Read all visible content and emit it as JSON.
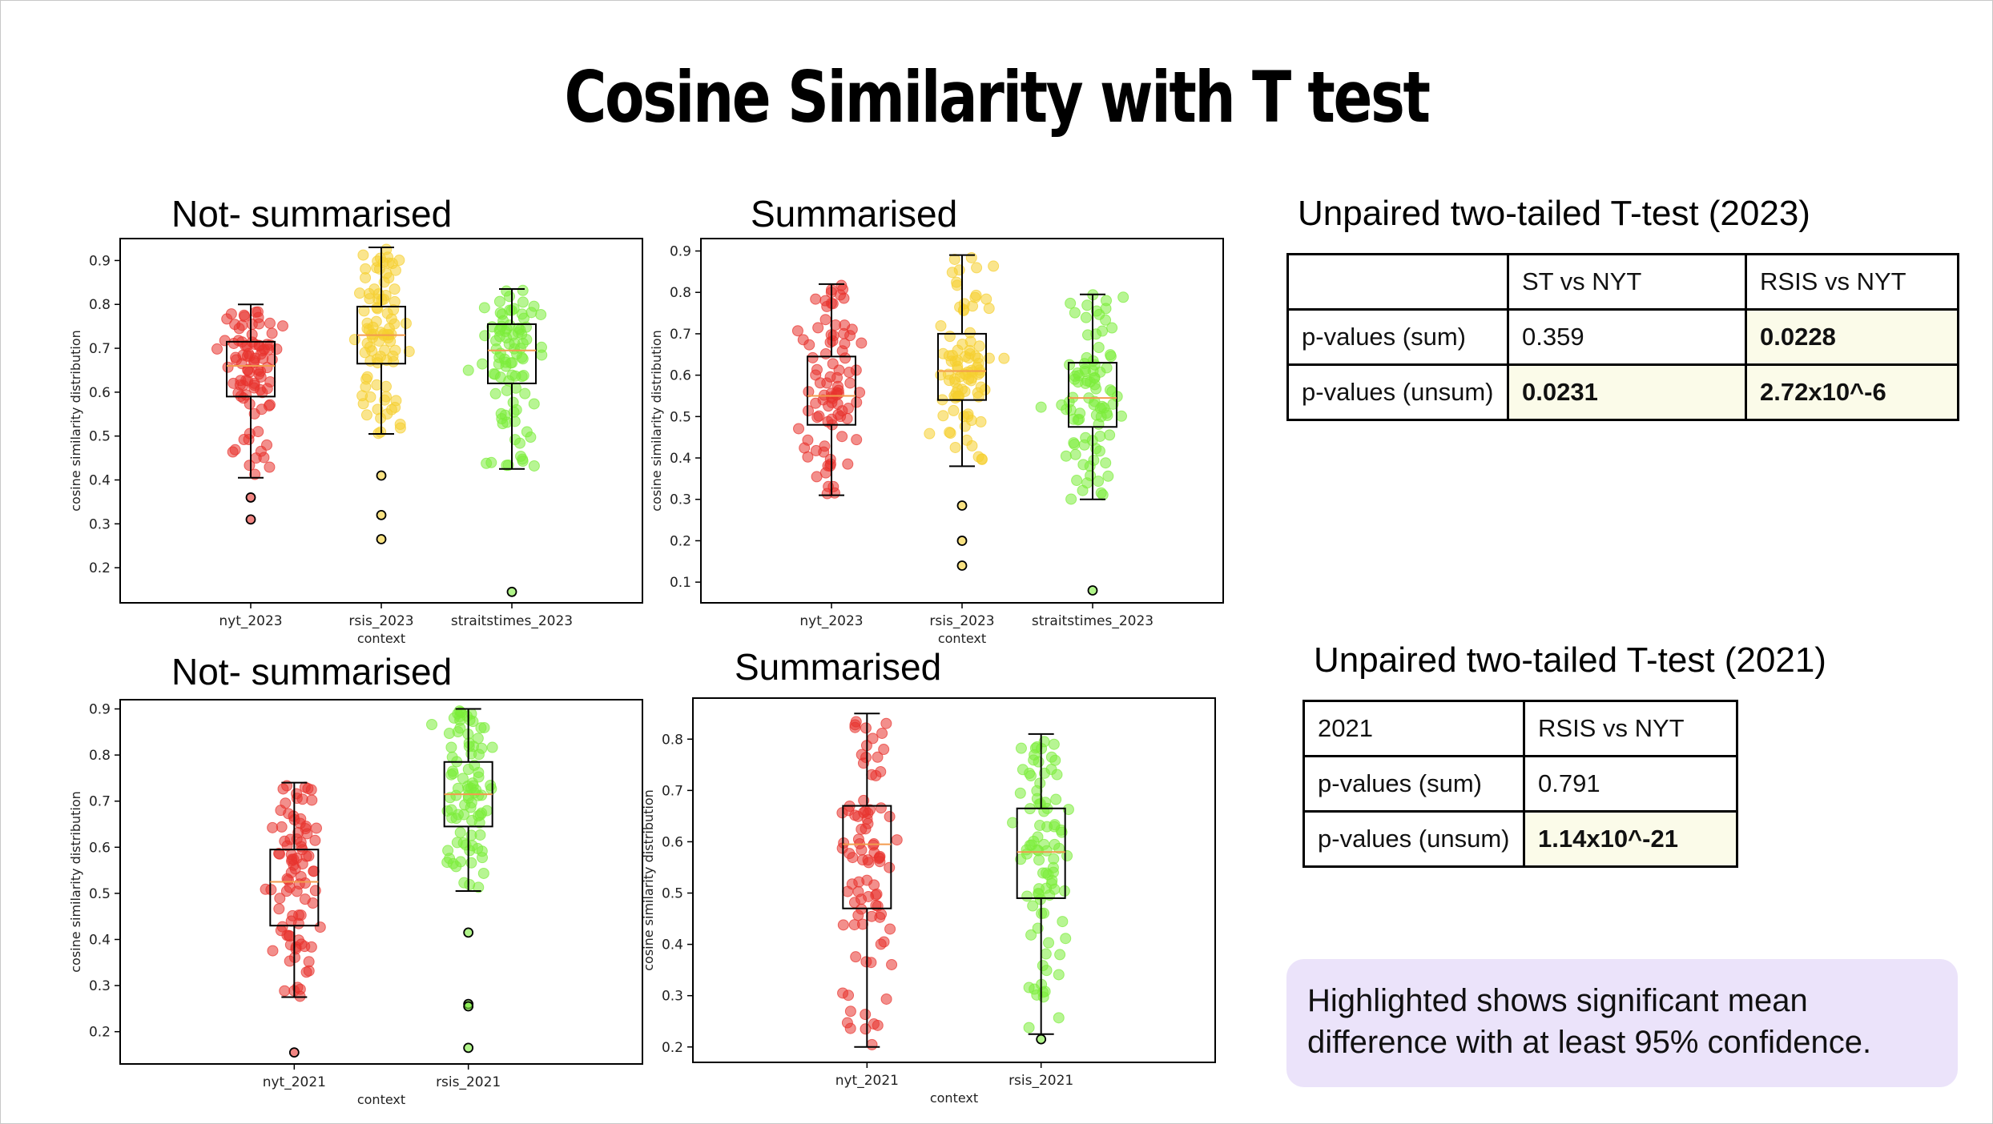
{
  "title": "Cosine Similarity with T test",
  "chart_data": [
    {
      "type": "box",
      "heading": "Not- summarised",
      "xlabel": "context",
      "ylabel": "cosine similarity distribution",
      "ylim": [
        0.12,
        0.95
      ],
      "yticks": [
        "0.2",
        "0.3",
        "0.4",
        "0.5",
        "0.6",
        "0.7",
        "0.8",
        "0.9"
      ],
      "categories": [
        "nyt_2023",
        "rsis_2023",
        "straitstimes_2023"
      ],
      "colors": [
        "#e8332e",
        "#f5cf2f",
        "#7cec3a"
      ],
      "boxes": [
        {
          "whislo": 0.405,
          "q1": 0.59,
          "med": 0.66,
          "q3": 0.715,
          "whishi": 0.8,
          "fliers": [
            0.36,
            0.31
          ]
        },
        {
          "whislo": 0.505,
          "q1": 0.665,
          "med": 0.73,
          "q3": 0.795,
          "whishi": 0.93,
          "fliers": [
            0.41,
            0.32,
            0.265
          ]
        },
        {
          "whislo": 0.425,
          "q1": 0.62,
          "med": 0.695,
          "q3": 0.755,
          "whishi": 0.835,
          "fliers": [
            0.145
          ]
        }
      ]
    },
    {
      "type": "box",
      "heading": "Summarised",
      "xlabel": "context",
      "ylabel": "cosine similarity distribution",
      "ylim": [
        0.05,
        0.93
      ],
      "yticks": [
        "0.1",
        "0.2",
        "0.3",
        "0.4",
        "0.5",
        "0.6",
        "0.7",
        "0.8",
        "0.9"
      ],
      "categories": [
        "nyt_2023",
        "rsis_2023",
        "straitstimes_2023"
      ],
      "colors": [
        "#e8332e",
        "#f5cf2f",
        "#7cec3a"
      ],
      "boxes": [
        {
          "whislo": 0.31,
          "q1": 0.48,
          "med": 0.55,
          "q3": 0.645,
          "whishi": 0.82,
          "fliers": []
        },
        {
          "whislo": 0.38,
          "q1": 0.54,
          "med": 0.61,
          "q3": 0.7,
          "whishi": 0.89,
          "fliers": [
            0.285,
            0.2,
            0.14
          ]
        },
        {
          "whislo": 0.3,
          "q1": 0.475,
          "med": 0.545,
          "q3": 0.63,
          "whishi": 0.795,
          "fliers": [
            0.08
          ]
        }
      ]
    },
    {
      "type": "box",
      "heading": "Not- summarised",
      "xlabel": "context",
      "ylabel": "cosine similarity distribution",
      "ylim": [
        0.13,
        0.92
      ],
      "yticks": [
        "0.2",
        "0.3",
        "0.4",
        "0.5",
        "0.6",
        "0.7",
        "0.8",
        "0.9"
      ],
      "categories": [
        "nyt_2021",
        "rsis_2021"
      ],
      "colors": [
        "#e8332e",
        "#7cec3a"
      ],
      "boxes": [
        {
          "whislo": 0.275,
          "q1": 0.43,
          "med": 0.525,
          "q3": 0.595,
          "whishi": 0.74,
          "fliers": [
            0.155
          ]
        },
        {
          "whislo": 0.505,
          "q1": 0.645,
          "med": 0.715,
          "q3": 0.785,
          "whishi": 0.9,
          "fliers": [
            0.415,
            0.26,
            0.255,
            0.165
          ]
        }
      ]
    },
    {
      "type": "box",
      "heading": "Summarised",
      "xlabel": "context",
      "ylabel": "cosine similarity distribution",
      "ylim": [
        0.17,
        0.88
      ],
      "yticks": [
        "0.2",
        "0.3",
        "0.4",
        "0.5",
        "0.6",
        "0.7",
        "0.8"
      ],
      "categories": [
        "nyt_2021",
        "rsis_2021"
      ],
      "colors": [
        "#e8332e",
        "#7cec3a"
      ],
      "boxes": [
        {
          "whislo": 0.2,
          "q1": 0.47,
          "med": 0.595,
          "q3": 0.67,
          "whishi": 0.85,
          "fliers": []
        },
        {
          "whislo": 0.225,
          "q1": 0.49,
          "med": 0.58,
          "q3": 0.665,
          "whishi": 0.81,
          "fliers": [
            0.215
          ]
        }
      ]
    }
  ],
  "ttest_2023": {
    "heading": "Unpaired two-tailed T-test  (2023)",
    "header": [
      "",
      "ST vs NYT",
      "RSIS vs NYT"
    ],
    "rows": [
      {
        "label": "p-values (sum)",
        "values": [
          "0.359",
          "0.0228"
        ]
      },
      {
        "label": "p-values (unsum)",
        "values": [
          "0.0231",
          "2.72x10^-6"
        ]
      }
    ]
  },
  "ttest_2021": {
    "heading": "Unpaired two-tailed T-test  (2021)",
    "header": [
      "2021",
      "RSIS vs NYT"
    ],
    "rows": [
      {
        "label": "p-values (sum)",
        "values": [
          "0.791"
        ]
      },
      {
        "label": "p-values (unsum)",
        "values": [
          "1.14x10^-21"
        ]
      }
    ]
  },
  "note": "Highlighted shows significant mean difference with at least 95% confidence."
}
